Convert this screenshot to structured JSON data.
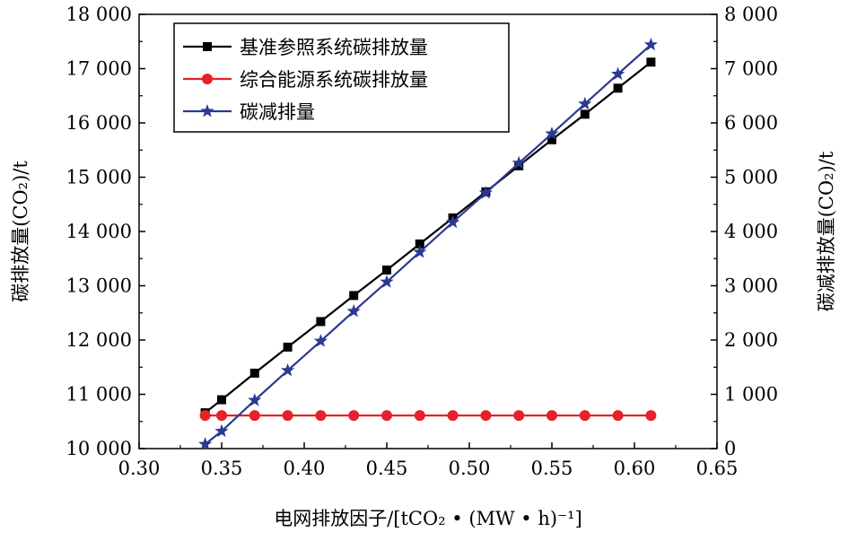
{
  "chart_data": {
    "type": "line",
    "x": [
      0.34,
      0.35,
      0.37,
      0.39,
      0.41,
      0.43,
      0.45,
      0.47,
      0.49,
      0.51,
      0.53,
      0.55,
      0.57,
      0.59,
      0.61
    ],
    "series": [
      {
        "name": "基准参照系统碳排放量",
        "axis": "left",
        "color": "#000000",
        "marker": "square",
        "values": [
          10660,
          10900,
          11390,
          11870,
          12340,
          12820,
          13290,
          13770,
          14250,
          14730,
          15210,
          15690,
          16160,
          16640,
          17120
        ]
      },
      {
        "name": "综合能源系统碳排放量",
        "axis": "left",
        "color": "#e8202a",
        "marker": "circle",
        "values": [
          10610,
          10610,
          10610,
          10610,
          10610,
          10610,
          10610,
          10610,
          10610,
          10610,
          10610,
          10610,
          10610,
          10610,
          10610
        ]
      },
      {
        "name": "碳减排量",
        "axis": "right",
        "color": "#2b3990",
        "marker": "star",
        "values": [
          80,
          320,
          890,
          1440,
          1980,
          2530,
          3070,
          3620,
          4170,
          4710,
          5260,
          5800,
          6350,
          6900,
          7440
        ]
      }
    ],
    "xlim": [
      0.3,
      0.65
    ],
    "xticks": [
      "0.30",
      "0.35",
      "0.40",
      "0.45",
      "0.50",
      "0.55",
      "0.60",
      "0.65"
    ],
    "ylim_left": [
      10000,
      18000
    ],
    "yticks_left": [
      "10 000",
      "11 000",
      "12 000",
      "13 000",
      "14 000",
      "15 000",
      "16 000",
      "17 000",
      "18 000"
    ],
    "ylim_right": [
      0,
      8000
    ],
    "yticks_right": [
      "0",
      "1 000",
      "2 000",
      "3 000",
      "4 000",
      "5 000",
      "6 000",
      "7 000",
      "8 000"
    ],
    "ylabel_left": "碳排放量(CO₂)/t",
    "ylabel_right": "碳减排放量(CO₂)/t",
    "xlabel": "电网排放因子/[tCO₂ • (MW • h)⁻¹]",
    "legend_position": "top-left",
    "grid": false
  }
}
